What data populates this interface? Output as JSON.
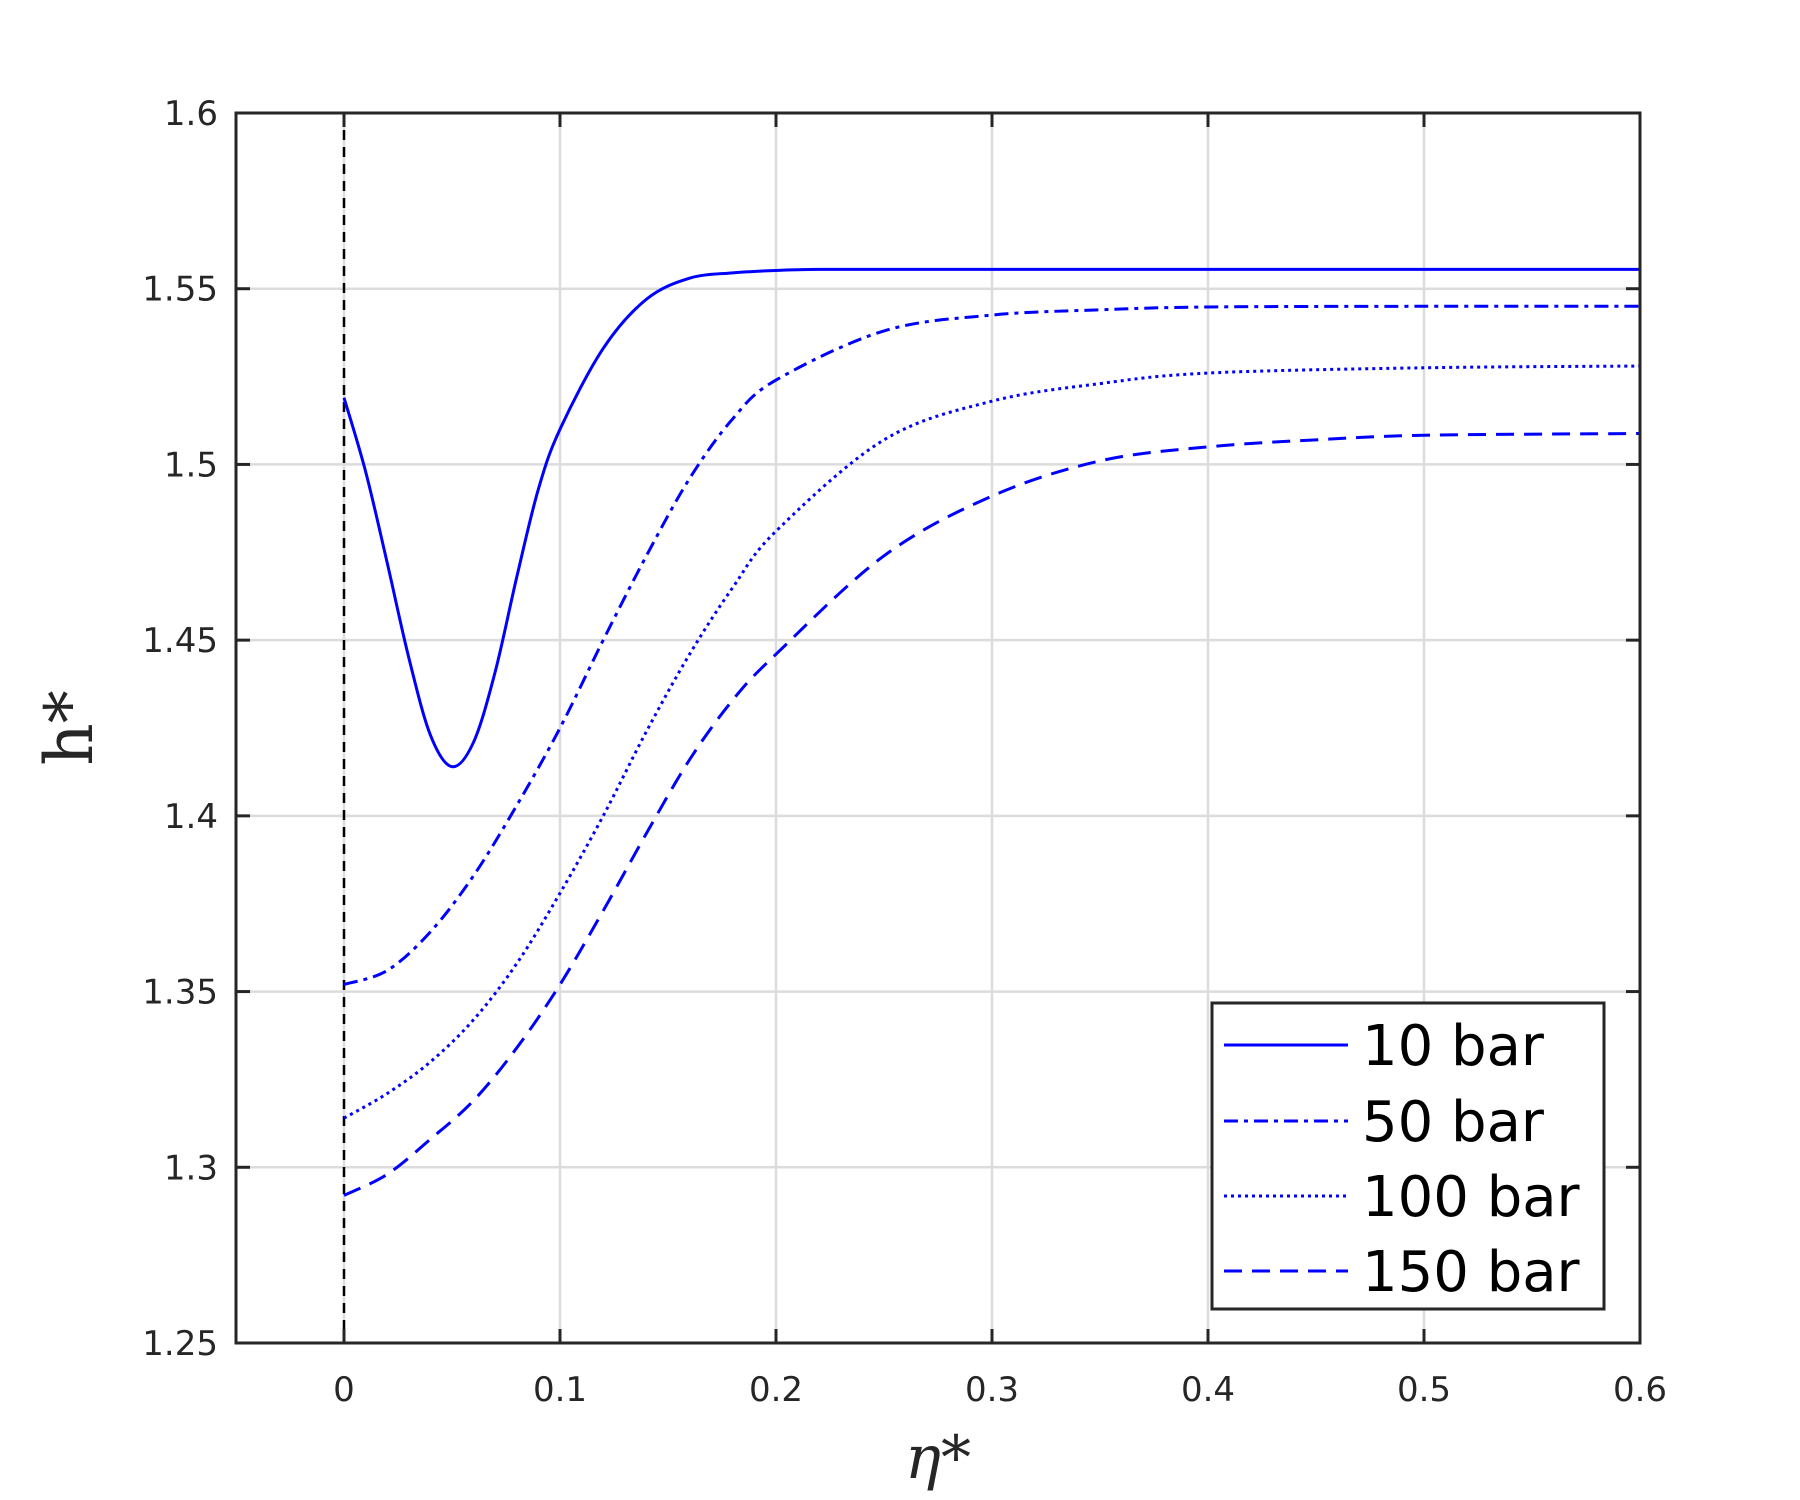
{
  "chart_data": {
    "type": "line",
    "xlabel": "η*",
    "ylabel": "h*",
    "xlim": [
      -0.05,
      0.6
    ],
    "ylim": [
      1.25,
      1.6
    ],
    "xticks": [
      0,
      0.1,
      0.2,
      0.3,
      0.4,
      0.5,
      0.6
    ],
    "xtick_labels": [
      "0",
      "0.1",
      "0.2",
      "0.3",
      "0.4",
      "0.5",
      "0.6"
    ],
    "yticks": [
      1.25,
      1.3,
      1.35,
      1.4,
      1.45,
      1.5,
      1.55,
      1.6
    ],
    "ytick_labels": [
      "1.25",
      "1.3",
      "1.35",
      "1.4",
      "1.45",
      "1.5",
      "1.55",
      "1.6"
    ],
    "grid": true,
    "legend_position": "bottom-right",
    "reference_line": {
      "x": 0,
      "style": "dashed",
      "color": "#000000"
    },
    "series": [
      {
        "name": "10 bar",
        "style": "solid",
        "color": "#0000ff",
        "x": [
          0,
          0.01,
          0.02,
          0.03,
          0.04,
          0.05,
          0.06,
          0.07,
          0.08,
          0.09,
          0.1,
          0.12,
          0.14,
          0.16,
          0.18,
          0.2,
          0.22,
          0.25,
          0.3,
          0.4,
          0.5,
          0.6
        ],
        "y": [
          1.519,
          1.498,
          1.472,
          1.445,
          1.423,
          1.414,
          1.421,
          1.441,
          1.468,
          1.493,
          1.51,
          1.533,
          1.547,
          1.553,
          1.5545,
          1.5552,
          1.5555,
          1.5555,
          1.5555,
          1.5555,
          1.5555,
          1.5555
        ]
      },
      {
        "name": "50 bar",
        "style": "dashdot",
        "color": "#0000ff",
        "x": [
          0,
          0.02,
          0.04,
          0.06,
          0.08,
          0.1,
          0.12,
          0.14,
          0.16,
          0.18,
          0.2,
          0.25,
          0.3,
          0.35,
          0.4,
          0.5,
          0.6
        ],
        "y": [
          1.352,
          1.356,
          1.367,
          1.383,
          1.403,
          1.425,
          1.45,
          1.474,
          1.496,
          1.513,
          1.524,
          1.538,
          1.5425,
          1.544,
          1.5448,
          1.545,
          1.545
        ]
      },
      {
        "name": "100 bar",
        "style": "dotted",
        "color": "#0000ff",
        "x": [
          0,
          0.02,
          0.04,
          0.06,
          0.08,
          0.1,
          0.12,
          0.14,
          0.16,
          0.18,
          0.2,
          0.25,
          0.3,
          0.35,
          0.4,
          0.5,
          0.6
        ],
        "y": [
          1.314,
          1.321,
          1.33,
          1.342,
          1.358,
          1.378,
          1.4,
          1.424,
          1.446,
          1.465,
          1.481,
          1.507,
          1.518,
          1.523,
          1.526,
          1.5275,
          1.528
        ]
      },
      {
        "name": "150 bar",
        "style": "dashed",
        "color": "#0000ff",
        "x": [
          0,
          0.02,
          0.04,
          0.06,
          0.08,
          0.1,
          0.12,
          0.14,
          0.16,
          0.18,
          0.2,
          0.25,
          0.3,
          0.35,
          0.4,
          0.45,
          0.5,
          0.6
        ],
        "y": [
          1.292,
          1.298,
          1.308,
          1.319,
          1.334,
          1.352,
          1.373,
          1.395,
          1.416,
          1.433,
          1.446,
          1.474,
          1.491,
          1.501,
          1.505,
          1.507,
          1.5083,
          1.5088
        ]
      }
    ]
  }
}
